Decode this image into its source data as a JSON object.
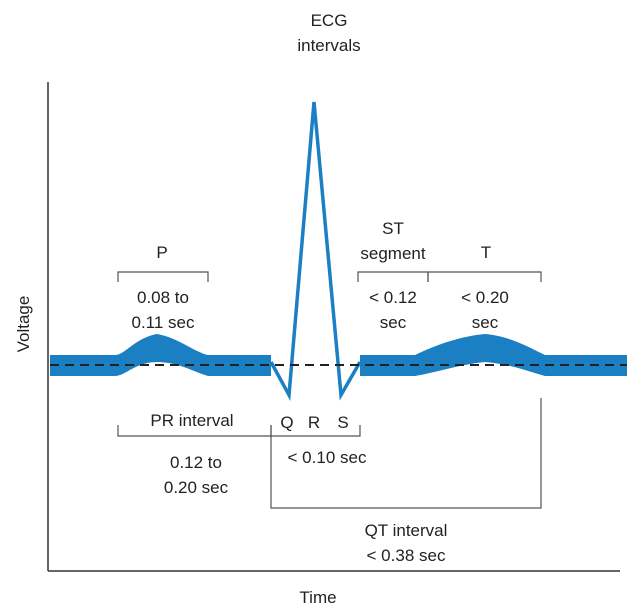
{
  "title": {
    "line1": "ECG",
    "line2": "intervals"
  },
  "axes": {
    "x_label": "Time",
    "y_label": "Voltage"
  },
  "waves": {
    "p": {
      "label": "P",
      "duration_line1": "0.08 to",
      "duration_line2": "0.11 sec"
    },
    "t": {
      "label": "T",
      "duration_line1": "< 0.20",
      "duration_line2": "sec"
    }
  },
  "segments": {
    "st": {
      "label_line1": "ST",
      "label_line2": "segment",
      "duration_line1": "< 0.12",
      "duration_line2": "sec"
    }
  },
  "intervals": {
    "pr": {
      "label": "PR interval",
      "duration_line1": "0.12 to",
      "duration_line2": "0.20 sec"
    },
    "qrs": {
      "q": "Q",
      "r": "R",
      "s": "S",
      "duration": "< 0.10 sec"
    },
    "qt": {
      "label": "QT interval",
      "duration": "< 0.38 sec"
    }
  },
  "colors": {
    "trace": "#1b7fc4",
    "baseline": "#222222",
    "bracket": "#555555",
    "axis": "#333333"
  }
}
